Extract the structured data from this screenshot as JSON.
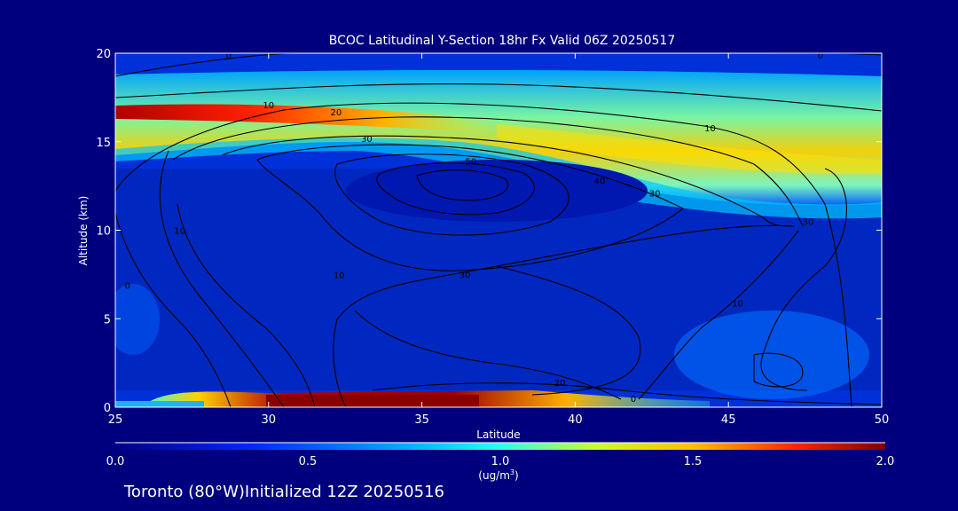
{
  "chart_data": {
    "type": "contour",
    "title": "BCOC Latitudinal Y-Section 18hr  Fx Valid 06Z 20250517",
    "xlabel": "Latitude",
    "ylabel": "Altitude (km)",
    "xlim": [
      25,
      50
    ],
    "ylim": [
      0,
      20
    ],
    "x_ticks": [
      25,
      30,
      35,
      40,
      45,
      50
    ],
    "y_ticks": [
      0,
      5,
      10,
      15,
      20
    ],
    "colorbar": {
      "min": 0.0,
      "max": 2.0,
      "ticks": [
        "0.0",
        "0.5",
        "1.0",
        "1.5",
        "2.0"
      ],
      "units_line1": "(ug/m",
      "units_sup": "3",
      "units_line2": ")"
    },
    "shaded_features": [
      {
        "name": "upper-plume",
        "lat_range": [
          25,
          50
        ],
        "alt_range": [
          13,
          19
        ],
        "peak_value": 2.0,
        "peak_location": [
          26,
          16.6
        ]
      },
      {
        "name": "surface-plume",
        "lat_range": [
          26,
          42
        ],
        "alt_range": [
          0,
          1
        ],
        "peak_value": 2.0,
        "peak_location": [
          32,
          0.3
        ]
      }
    ],
    "contour_labels": [
      {
        "text": "0",
        "lat": 28.7,
        "alt": 19.9
      },
      {
        "text": "0",
        "lat": 48.0,
        "alt": 19.9
      },
      {
        "text": "10",
        "lat": 30.0,
        "alt": 17.1
      },
      {
        "text": "20",
        "lat": 32.2,
        "alt": 16.7
      },
      {
        "text": "30",
        "lat": 33.2,
        "alt": 15.2
      },
      {
        "text": "50",
        "lat": 36.6,
        "alt": 13.9
      },
      {
        "text": "40",
        "lat": 40.8,
        "alt": 12.8
      },
      {
        "text": "30",
        "lat": 42.6,
        "alt": 12.1
      },
      {
        "text": "10",
        "lat": 44.4,
        "alt": 15.8
      },
      {
        "text": "30",
        "lat": 47.6,
        "alt": 10.5
      },
      {
        "text": "30",
        "lat": 36.4,
        "alt": 7.5
      },
      {
        "text": "10",
        "lat": 32.3,
        "alt": 7.5
      },
      {
        "text": "10",
        "lat": 45.3,
        "alt": 5.9
      },
      {
        "text": "20",
        "lat": 39.5,
        "alt": 1.4
      },
      {
        "text": "10",
        "lat": 27.1,
        "alt": 10.0
      },
      {
        "text": "0",
        "lat": 25.4,
        "alt": 6.9
      },
      {
        "text": "0",
        "lat": 41.9,
        "alt": 0.5
      }
    ]
  },
  "footer": {
    "text": "Toronto (80°W)Initialized 12Z 20250516"
  }
}
